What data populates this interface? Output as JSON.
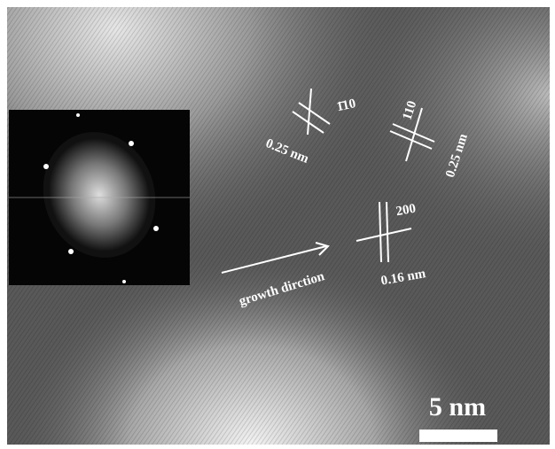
{
  "inset_label": null,
  "annotations": {
    "plane_a": "1̄10",
    "spacing_a": "0.25 nm",
    "plane_b": "110",
    "spacing_b": "0.25 nm",
    "plane_c": "200",
    "spacing_c": "0.16 nm",
    "growth": "growth dirction"
  },
  "scale_bar": "5 nm"
}
